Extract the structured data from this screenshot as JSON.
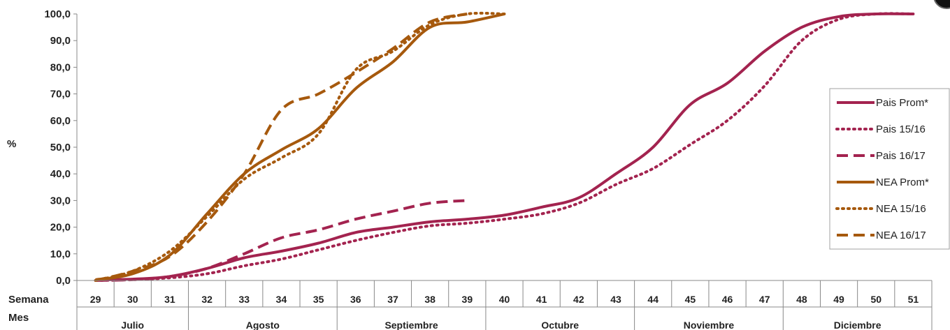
{
  "chart_data": {
    "type": "line",
    "ylabel": "%",
    "ylim": [
      0,
      100
    ],
    "yticks": [
      "0,0",
      "10,0",
      "20,0",
      "30,0",
      "40,0",
      "50,0",
      "60,0",
      "70,0",
      "80,0",
      "90,0",
      "100,0"
    ],
    "grid": false,
    "legend_position": "right",
    "row_labels": {
      "week": "Semana",
      "month": "Mes"
    },
    "weeks": [
      "29",
      "30",
      "31",
      "32",
      "33",
      "34",
      "35",
      "36",
      "37",
      "38",
      "39",
      "40",
      "41",
      "42",
      "43",
      "44",
      "45",
      "46",
      "47",
      "48",
      "49",
      "50",
      "51"
    ],
    "months": [
      {
        "label": "Julio",
        "first": 0,
        "last": 2
      },
      {
        "label": "Agosto",
        "first": 3,
        "last": 6
      },
      {
        "label": "Septiembre",
        "first": 7,
        "last": 10
      },
      {
        "label": "Octubre",
        "first": 11,
        "last": 14
      },
      {
        "label": "Noviembre",
        "first": 15,
        "last": 18
      },
      {
        "label": "Diciembre",
        "first": 19,
        "last": 22
      }
    ],
    "series": [
      {
        "name": "Pais Prom*",
        "color": "#a3234f",
        "dash": "solid",
        "values": [
          0.2,
          0.5,
          1.5,
          4.5,
          8.5,
          11,
          14,
          18,
          20,
          22,
          23,
          24.5,
          27.5,
          31,
          40,
          50,
          66,
          74,
          86,
          95,
          99,
          100,
          100
        ]
      },
      {
        "name": "Pais 15/16",
        "color": "#a3234f",
        "dash": "dot",
        "values": [
          0,
          0.3,
          1,
          2.5,
          5.5,
          8,
          11.5,
          15,
          18,
          20.5,
          21.5,
          23,
          25,
          29,
          36,
          42,
          51,
          60,
          73,
          90,
          98,
          100,
          100
        ]
      },
      {
        "name": "Pais 16/17",
        "color": "#a3234f",
        "dash": "dash",
        "values": [
          0,
          0.3,
          1.5,
          4.5,
          10,
          16,
          19,
          23,
          26,
          29,
          30,
          null,
          null,
          null,
          null,
          null,
          null,
          null,
          null,
          null,
          null,
          null,
          null
        ]
      },
      {
        "name": "NEA Prom*",
        "color": "#a6590d",
        "dash": "solid",
        "values": [
          0.3,
          2.5,
          9.5,
          25,
          40,
          49,
          57,
          72,
          82,
          95,
          97,
          100,
          null,
          null,
          null,
          null,
          null,
          null,
          null,
          null,
          null,
          null,
          null
        ]
      },
      {
        "name": "NEA 15/16",
        "color": "#a6590d",
        "dash": "dot",
        "values": [
          0,
          3.5,
          11,
          24,
          38,
          46,
          55,
          79,
          86,
          96,
          100,
          100,
          null,
          null,
          null,
          null,
          null,
          null,
          null,
          null,
          null,
          null,
          null
        ]
      },
      {
        "name": "NEA 16/17",
        "color": "#a6590d",
        "dash": "dash",
        "values": [
          0,
          3.5,
          9,
          22,
          40,
          64,
          70,
          78,
          87,
          97,
          100,
          null,
          null,
          null,
          null,
          null,
          null,
          null,
          null,
          null,
          null,
          null,
          null
        ]
      }
    ]
  }
}
